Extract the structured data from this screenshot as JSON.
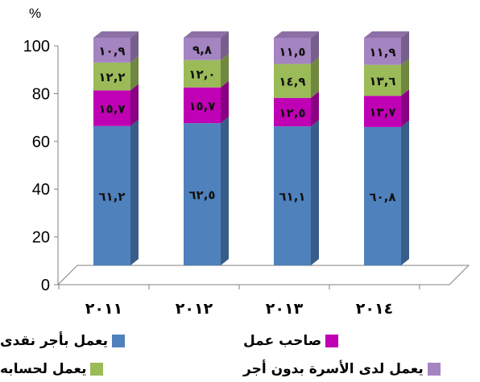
{
  "chart_data": {
    "type": "bar",
    "stacked": true,
    "unit_label": "%",
    "categories": [
      "٢٠١١",
      "٢٠١٢",
      "٢٠١٣",
      "٢٠١٤"
    ],
    "series": [
      {
        "name": "يعمل بأجر نقدى",
        "color": "#4f81bd",
        "values": [
          61.2,
          62.5,
          61.1,
          60.8
        ],
        "labels": [
          "٦١,٢",
          "٦٢,٥",
          "٦١,١",
          "٦٠,٨"
        ]
      },
      {
        "name": "صاحب عمل",
        "color": "#c000b4",
        "values": [
          15.7,
          15.7,
          12.5,
          13.7
        ],
        "labels": [
          "١٥,٧",
          "١٥,٧",
          "١٢,٥",
          "١٣,٧"
        ]
      },
      {
        "name": "يعمل لحسابه",
        "color": "#9bbb59",
        "values": [
          12.2,
          12.0,
          14.9,
          13.6
        ],
        "labels": [
          "١٢,٢",
          "١٢,٠",
          "١٤,٩",
          "١٣,٦"
        ]
      },
      {
        "name": "يعمل لدى الأسرة بدون أجر",
        "color": "#a584c2",
        "values": [
          10.9,
          9.8,
          11.5,
          11.9
        ],
        "labels": [
          "١٠,٩",
          "٩,٨",
          "١١,٥",
          "١١,٩"
        ]
      }
    ],
    "ylim": [
      0,
      100
    ],
    "yticks": [
      0,
      20,
      40,
      60,
      80,
      100
    ],
    "grid": false,
    "legend": "bottom"
  }
}
